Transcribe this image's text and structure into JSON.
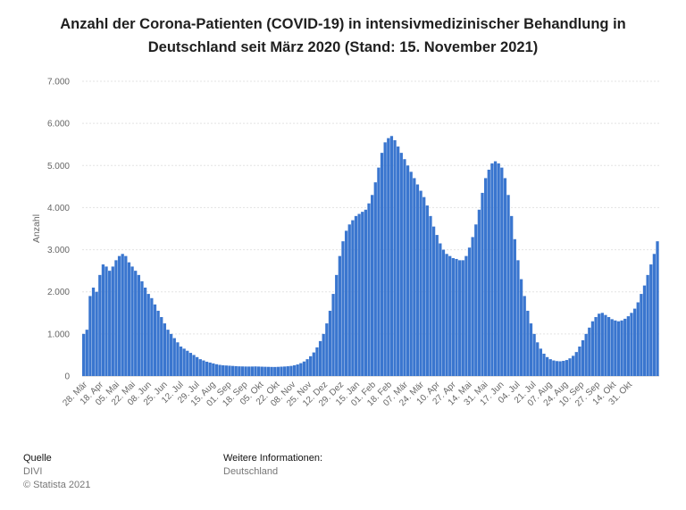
{
  "chart_data": {
    "type": "bar",
    "title": "Anzahl der Corona-Patienten (COVID-19) in intensivmedizinischer Behandlung in Deutschland seit März 2020 (Stand: 15. November 2021)",
    "ylabel": "Anzahl",
    "xlabel": "",
    "ylim": [
      0,
      7000
    ],
    "yticks": [
      0,
      1000,
      2000,
      3000,
      4000,
      5000,
      6000,
      7000
    ],
    "ytick_labels": [
      "0",
      "1.000",
      "2.000",
      "3.000",
      "4.000",
      "5.000",
      "6.000",
      "7.000"
    ],
    "grid": true,
    "color": "#3a76cf",
    "x_tick_labels": [
      "28. Mär",
      "18. Apr",
      "05. Mai",
      "22. Mai",
      "08. Jun",
      "25. Jun",
      "12. Jul",
      "29. Jul",
      "15. Aug",
      "01. Sep",
      "18. Sep",
      "05. Okt",
      "22. Okt",
      "08. Nov",
      "25. Nov",
      "12. Dez",
      "29. Dez",
      "15. Jan",
      "01. Feb",
      "18. Feb",
      "07. Mär",
      "24. Mär",
      "10. Apr",
      "27. Apr",
      "14. Mai",
      "31. Mai",
      "17. Jun",
      "04. Jul",
      "21. Jul",
      "07. Aug",
      "24. Aug",
      "10. Sep",
      "27. Sep",
      "14. Okt",
      "31. Okt"
    ],
    "series": [
      {
        "values": [
          1000,
          1100,
          1900,
          2100,
          2000,
          2400,
          2650,
          2600,
          2500,
          2600,
          2750,
          2850,
          2900,
          2850,
          2700,
          2600,
          2500,
          2400,
          2250,
          2100,
          1950,
          1850,
          1700,
          1550,
          1400,
          1250,
          1100,
          1000,
          900,
          800,
          700,
          650,
          600,
          550,
          500,
          450,
          400,
          370,
          340,
          320,
          300,
          280,
          265,
          255,
          250,
          245,
          240,
          235,
          230,
          228,
          226,
          225,
          226,
          228,
          225,
          222,
          220,
          218,
          216,
          215,
          218,
          222,
          226,
          232,
          240,
          255,
          275,
          305,
          345,
          400,
          470,
          560,
          680,
          830,
          1000,
          1250,
          1550,
          1950,
          2400,
          2850,
          3200,
          3450,
          3600,
          3700,
          3800,
          3850,
          3900,
          3950,
          4100,
          4300,
          4600,
          4950,
          5300,
          5550,
          5650,
          5700,
          5600,
          5450,
          5300,
          5150,
          5000,
          4850,
          4700,
          4550,
          4400,
          4250,
          4050,
          3800,
          3550,
          3350,
          3150,
          3000,
          2900,
          2850,
          2800,
          2780,
          2750,
          2750,
          2850,
          3050,
          3300,
          3600,
          3950,
          4350,
          4700,
          4900,
          5050,
          5100,
          5050,
          4950,
          4700,
          4300,
          3800,
          3250,
          2750,
          2300,
          1900,
          1550,
          1250,
          1000,
          800,
          650,
          530,
          450,
          400,
          370,
          355,
          350,
          360,
          380,
          420,
          480,
          570,
          700,
          850,
          1000,
          1150,
          1300,
          1400,
          1480,
          1500,
          1450,
          1400,
          1350,
          1320,
          1300,
          1320,
          1360,
          1420,
          1500,
          1600,
          1750,
          1950,
          2150,
          2400,
          2650,
          2900,
          3200
        ]
      }
    ]
  },
  "footer": {
    "source_heading": "Quelle",
    "source_name": "DIVI",
    "copyright": "© Statista 2021",
    "info_heading": "Weitere Informationen:",
    "info_region": "Deutschland"
  }
}
